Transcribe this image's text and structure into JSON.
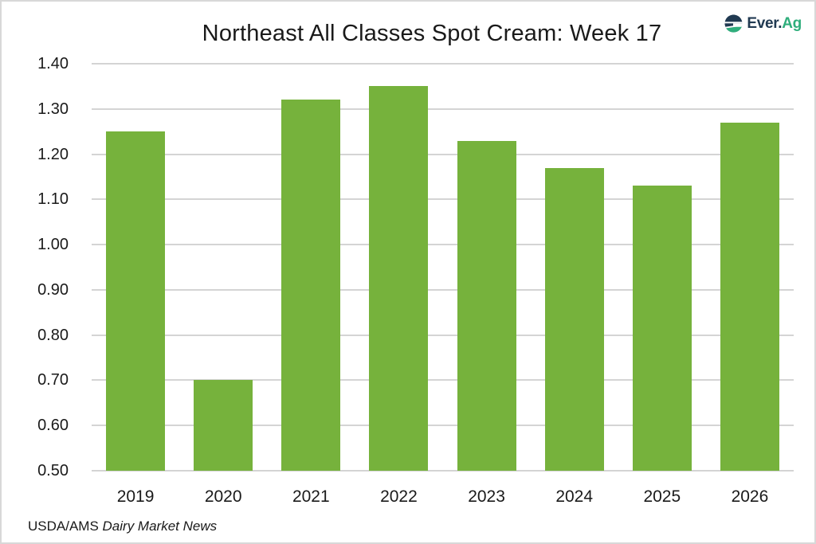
{
  "header": {
    "logo": {
      "prefix": "Ever.",
      "suffix": "Ag",
      "navy": "#213A52",
      "green": "#2FAE7C"
    }
  },
  "chart_data": {
    "type": "bar",
    "title": "Northeast All Classes Spot Cream: Week 17",
    "categories": [
      "2019",
      "2020",
      "2021",
      "2022",
      "2023",
      "2024",
      "2025",
      "2026"
    ],
    "values": [
      1.25,
      0.7,
      1.32,
      1.35,
      1.23,
      1.17,
      1.13,
      1.27
    ],
    "xlabel": "",
    "ylabel": "",
    "ylim": [
      0.5,
      1.4
    ],
    "yticks": [
      1.4,
      1.3,
      1.2,
      1.1,
      1.0,
      0.9,
      0.8,
      0.7,
      0.6,
      0.5
    ],
    "ytick_labels": [
      "1.40",
      "1.30",
      "1.20",
      "1.10",
      "1.00",
      "0.90",
      "0.80",
      "0.70",
      "0.60",
      "0.50"
    ],
    "grid": true,
    "legend": false,
    "bar_color": "#76B23C",
    "gridline_color": "#D4D4D4",
    "text_color": "#1A1A1A"
  },
  "footer": {
    "source_prefix": "USDA/AMS",
    "source_name": "Dairy Market News"
  }
}
